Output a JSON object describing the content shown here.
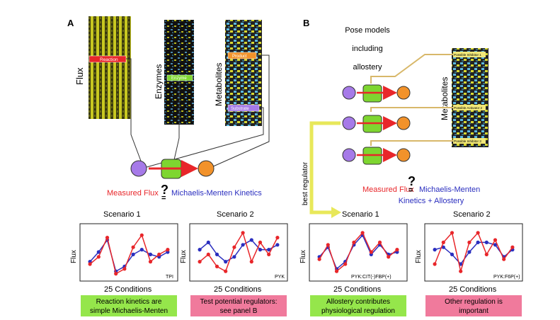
{
  "panel_a": {
    "label": "A",
    "heatmaps": {
      "flux": "Flux",
      "enzymes": "Enzymes",
      "metabolites": "Metabolites"
    },
    "tags": {
      "reaction": "Reaction",
      "enzyme": "Enzyme",
      "product": "Product",
      "substrate": "Substrate"
    },
    "equation": {
      "left": "Measured Flux",
      "q": "?",
      "eq": "=",
      "right": "Michaelis-Menten Kinetics"
    },
    "scenario1": {
      "title": "Scenario 1",
      "ylabel": "Flux",
      "xlabel": "25 Conditions",
      "tag": "TPI",
      "box": [
        "Reaction kinetics are",
        "simple Michaelis-Menten"
      ]
    },
    "scenario2": {
      "title": "Scenario 2",
      "ylabel": "Flux",
      "xlabel": "25 Conditions",
      "tag": "PYK",
      "box": [
        "Test potential regulators:",
        "see panel B"
      ]
    }
  },
  "panel_b": {
    "label": "B",
    "pose": [
      "Pose models",
      "including",
      "allostery"
    ],
    "metabolites": "Metabolites",
    "inhibitors": [
      "Possible Inhibitor 1",
      "Possible Activator 2",
      "Possible Inhibitor 3"
    ],
    "best_regulator": "best regulator",
    "equation": {
      "left": "Measured Flux",
      "q": "?",
      "eq": "=",
      "right1": "Michaelis-Menten",
      "right2": "Kinetics + Allostery"
    },
    "scenario1": {
      "title": "Scenario 1",
      "ylabel": "Flux",
      "xlabel": "25 Conditions",
      "tag": "PYK:CIT(-)FBP(+)",
      "box": [
        "Allostery contributes",
        "physiological regulation"
      ]
    },
    "scenario2": {
      "title": "Scenario 2",
      "ylabel": "Flux",
      "xlabel": "25 Conditions",
      "tag": "PYK:F6P(+)",
      "box": [
        "Other regulation is",
        "important"
      ]
    }
  },
  "colors": {
    "red": "#e8262a",
    "blue": "#2a2ebf",
    "green_box": "#95e64b",
    "pink_box": "#f07a9c",
    "node_purple": "#a67ae8",
    "node_orange": "#f2922a",
    "enzyme_green": "#7ed630",
    "arrow_yellow": "#e8e85a",
    "tan_line": "#d8b86a"
  }
}
